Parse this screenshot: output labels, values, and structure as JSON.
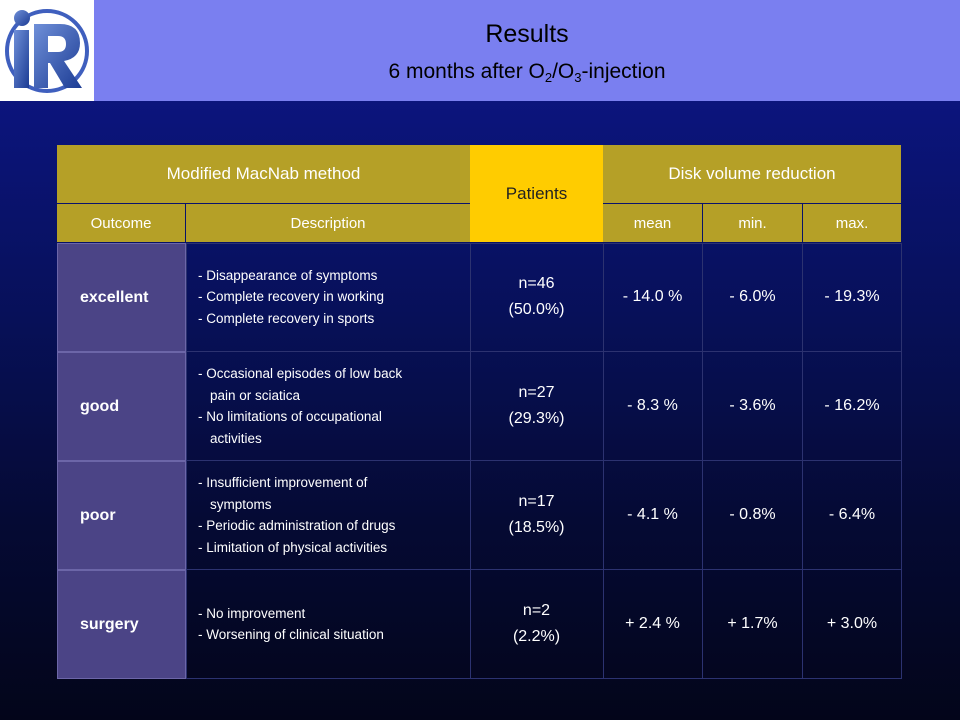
{
  "header": {
    "title": "Results",
    "subtitle_prefix": "6 months after O",
    "subtitle_sub1": "2",
    "subtitle_mid": "/O",
    "subtitle_sub2": "3",
    "subtitle_suffix": "-injection",
    "logo_text": "iR"
  },
  "table": {
    "group_headers": {
      "method": "Modified MacNab method",
      "patients": "Patients",
      "disk": "Disk volume reduction"
    },
    "sub_headers": {
      "outcome": "Outcome",
      "description": "Description",
      "mean": "mean",
      "min": "min.",
      "max": "max."
    },
    "rows": [
      {
        "outcome": "excellent",
        "description": [
          [
            "- Disappearance of symptoms"
          ],
          [
            "- Complete recovery in working"
          ],
          [
            "- Complete recovery in sports"
          ]
        ],
        "patients_n": "n=46",
        "patients_pct": "(50.0%)",
        "mean": "- 14.0 %",
        "min": "- 6.0%",
        "max": "- 19.3%"
      },
      {
        "outcome": "good",
        "description": [
          [
            "- Occasional episodes of low back",
            "pain or sciatica"
          ],
          [
            "- No limitations of occupational",
            "activities"
          ]
        ],
        "patients_n": "n=27",
        "patients_pct": "(29.3%)",
        "mean": "- 8.3 %",
        "min": "- 3.6%",
        "max": "- 16.2%"
      },
      {
        "outcome": "poor",
        "description": [
          [
            "- Insufficient improvement of",
            "symptoms"
          ],
          [
            "- Periodic administration of drugs"
          ],
          [
            "- Limitation of physical activities"
          ]
        ],
        "patients_n": "n=17",
        "patients_pct": "(18.5%)",
        "mean": "- 4.1 %",
        "min": "- 0.8%",
        "max": "- 6.4%"
      },
      {
        "outcome": "surgery",
        "description": [
          [
            "- No improvement"
          ],
          [
            "- Worsening of clinical situation"
          ]
        ],
        "patients_n": "n=2",
        "patients_pct": "(2.2%)",
        "mean": "+ 2.4 %",
        "min": "+ 1.7%",
        "max": "+ 3.0%"
      }
    ]
  }
}
